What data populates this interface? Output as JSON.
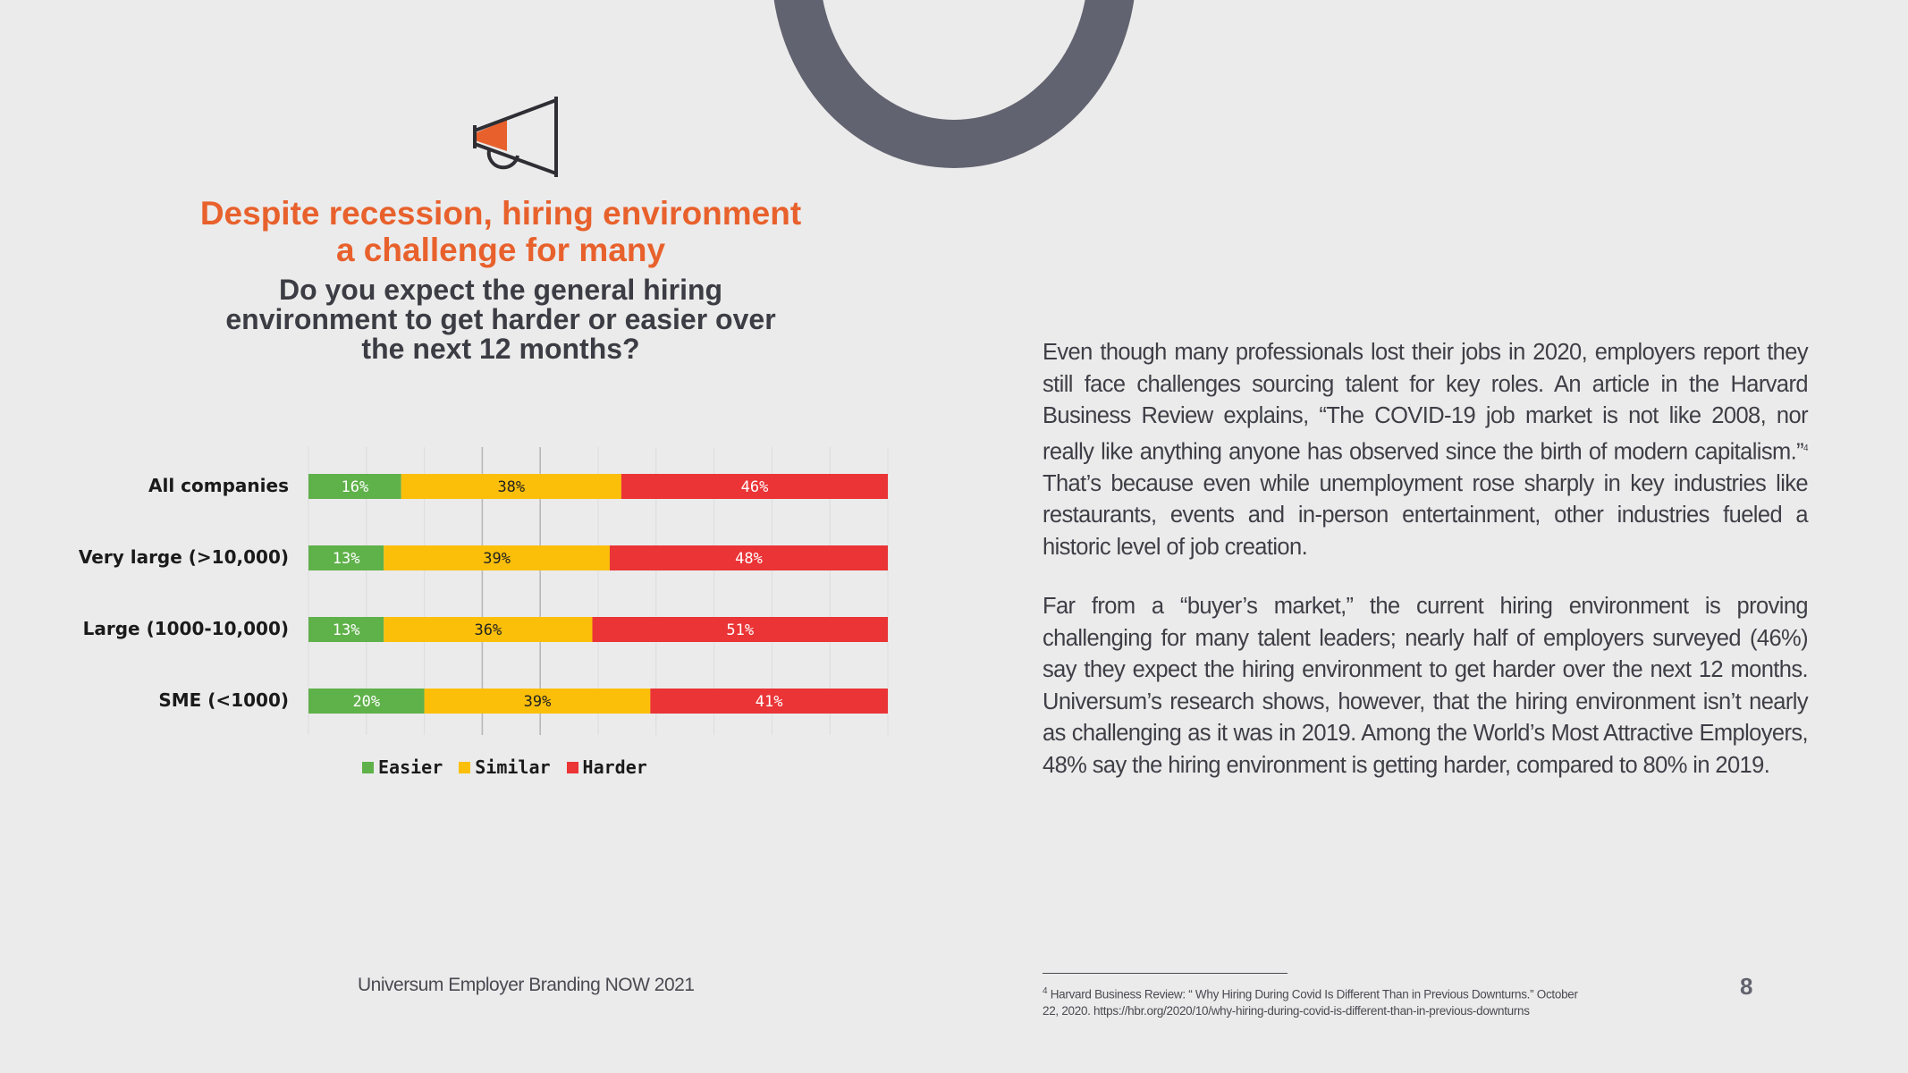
{
  "heading": {
    "title_line1": "Despite recession, hiring environment",
    "title_line2": "a challenge for many",
    "question_line1": "Do you expect the general hiring",
    "question_line2": "environment to get harder or easier over",
    "question_line3": "the next 12 months?"
  },
  "colors": {
    "accent": "#e8612c",
    "easier": "#5fb14a",
    "similar": "#fbbf0a",
    "harder": "#ea3436",
    "ring": "#626370"
  },
  "icons": [
    "megaphone-icon"
  ],
  "chart_data": {
    "type": "bar",
    "orientation": "horizontal-stacked-100",
    "categories": [
      "All companies",
      "Very large (>10,000)",
      "Large (1000-10,000)",
      "SME (<1000)"
    ],
    "series": [
      {
        "name": "Easier",
        "values": [
          16,
          13,
          13,
          20
        ],
        "labels": [
          "16%",
          "13%",
          "13%",
          "20%"
        ]
      },
      {
        "name": "Similar",
        "values": [
          38,
          39,
          36,
          39
        ],
        "labels": [
          "38%",
          "39%",
          "36%",
          "39%"
        ]
      },
      {
        "name": "Harder",
        "values": [
          46,
          48,
          51,
          41
        ],
        "labels": [
          "46%",
          "48%",
          "51%",
          "41%"
        ]
      }
    ],
    "xlim": [
      0,
      100
    ],
    "grid": true,
    "legend": "bottom"
  },
  "body": {
    "paragraph1_main": "Even though many professionals lost their jobs in 2020, employers report they still face challenges sourcing talent for key roles. An article in the Harvard Business Review explains, “The COVID-19 job market is not like 2008, nor really like anything anyone has observed since the birth of modern capitalism.”",
    "paragraph1_ref": "4",
    "paragraph1_rest": " That’s because even while unemployment rose sharply in key industries like restaurants, events and in-person entertainment, other industries fueled a historic level of job creation.",
    "paragraph2": "Far from a “buyer’s market,” the current hiring environment is proving challenging for many talent leaders; nearly half of employers surveyed (46%) say they expect the  hiring environment to get harder over the next 12 months. Universum’s research shows, however, that the hiring environment isn’t nearly as challenging as it was in 2019. Among the World’s Most Attractive Employers, 48% say the hiring environment is getting harder, compared to 80% in 2019."
  },
  "footer": {
    "publication": "Universum Employer Branding NOW 2021",
    "footnote_num": "4",
    "footnote_text": "Harvard Business Review: “ Why Hiring During Covid Is Different Than in Previous Downturns.” October 22, 2020. https://hbr.org/2020/10/why-hiring-during-covid-is-different-than-in-previous-downturns",
    "page_number": "8"
  }
}
